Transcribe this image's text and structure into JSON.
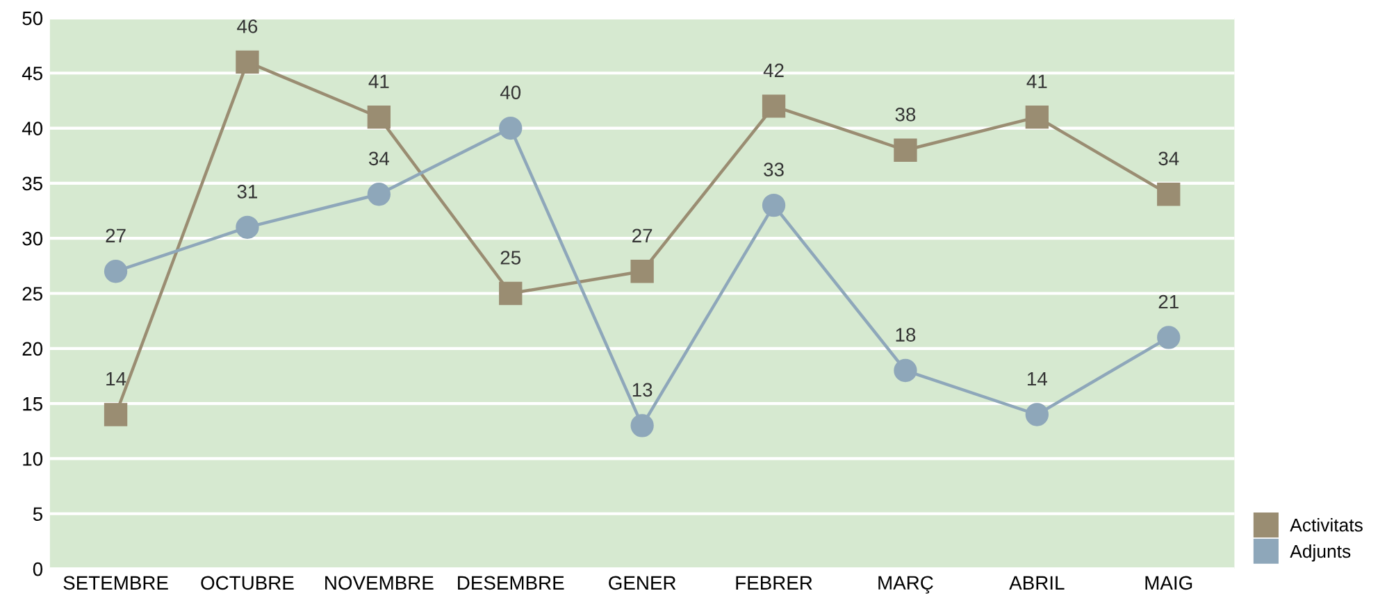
{
  "chart_data": {
    "type": "line",
    "categories": [
      "SETEMBRE",
      "OCTUBRE",
      "NOVEMBRE",
      "DESEMBRE",
      "GENER",
      "FEBRER",
      "MARÇ",
      "ABRIL",
      "MAIG"
    ],
    "series": [
      {
        "name": "Activitats",
        "color": "#9a8d72",
        "marker": "square",
        "values": [
          14,
          46,
          41,
          25,
          27,
          42,
          38,
          41,
          34
        ]
      },
      {
        "name": "Adjunts",
        "color": "#8ea7ba",
        "marker": "circle",
        "values": [
          27,
          31,
          34,
          40,
          13,
          33,
          18,
          14,
          21
        ]
      }
    ],
    "ylim": [
      0,
      50
    ],
    "yticks": [
      0,
      5,
      10,
      15,
      20,
      25,
      30,
      35,
      40,
      45,
      50
    ],
    "grid": "y",
    "legend": "bottom right",
    "data_labels": true,
    "line_style": "solid"
  }
}
